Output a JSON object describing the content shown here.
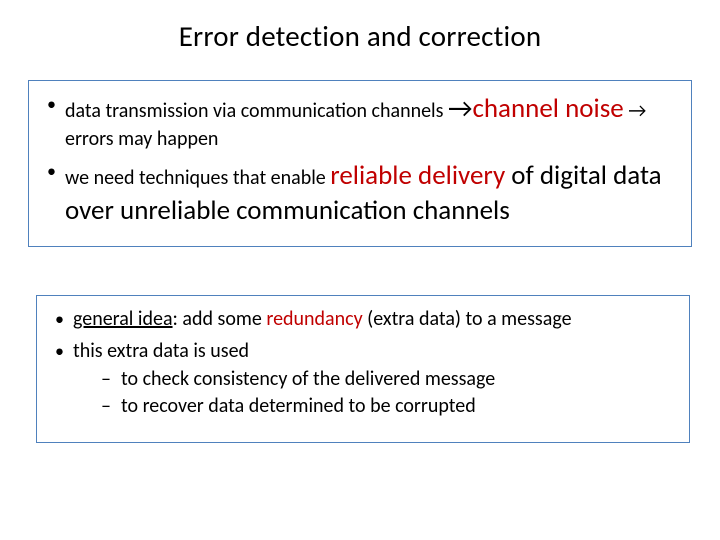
{
  "title": "Error detection and correction",
  "box1": {
    "li1": {
      "part1": "data transmission via communication channels ",
      "arrow1": "→",
      "keyword1": "channel noise",
      "arrow2": " → ",
      "part2": "errors may happen"
    },
    "li2": {
      "part1": "we need techniques that enable ",
      "keyword1": "reliable delivery",
      "part2": " of digital data over unreliable  communication channels"
    }
  },
  "box2": {
    "li1": {
      "underlined": "general idea",
      "part1": ": add some ",
      "keyword": "redundancy",
      "part2": " (extra data) to a message"
    },
    "li2": {
      "part1": "this extra data is used",
      "sub1": "to check consistency of the delivered message",
      "sub2": "to recover data determined to be corrupted"
    }
  },
  "colors": {
    "border": "#4f81bd",
    "emphasis": "#c00000",
    "text": "#000000",
    "background": "#ffffff"
  },
  "typography": {
    "title_fontsize": 29,
    "body_fontsize": 20,
    "emphasis_fontsize": 27,
    "font_family": "Calibri"
  }
}
